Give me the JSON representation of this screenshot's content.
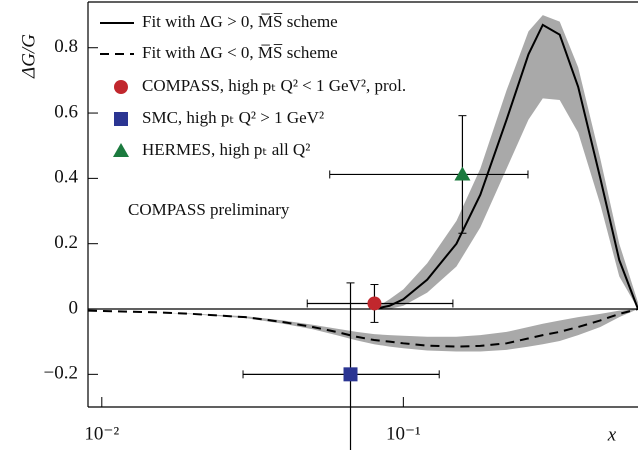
{
  "chart_data": {
    "type": "line",
    "ylabel": "ΔG/G",
    "xlabel": "x",
    "annotation": "COMPASS preliminary",
    "xscale": "log",
    "xlim": [
      0.009,
      0.6
    ],
    "ylim": [
      -0.3,
      0.94
    ],
    "xticks": [
      {
        "value": 0.01,
        "label": "10⁻²"
      },
      {
        "value": 0.1,
        "label": "10⁻¹"
      }
    ],
    "yticks": [
      {
        "value": -0.2,
        "label": "−0.2"
      },
      0,
      0.2,
      0.4,
      0.6,
      0.8
    ],
    "zero_line": true,
    "band_color": "#a9a9a9",
    "x": [
      0.009,
      0.015,
      0.02,
      0.03,
      0.04,
      0.05,
      0.06,
      0.07,
      0.08,
      0.09,
      0.1,
      0.12,
      0.15,
      0.18,
      0.22,
      0.26,
      0.29,
      0.33,
      0.38,
      0.45,
      0.52,
      0.6
    ],
    "series": [
      {
        "name": "Fit with ΔG > 0, M̅S̅ scheme",
        "color": "#000000",
        "dash": "solid",
        "values": [
          null,
          null,
          null,
          null,
          null,
          null,
          null,
          null,
          0,
          0.01,
          0.03,
          0.09,
          0.2,
          0.35,
          0.58,
          0.78,
          0.87,
          0.84,
          0.68,
          0.4,
          0.15,
          0
        ],
        "band_upper": [
          null,
          null,
          null,
          null,
          null,
          null,
          null,
          null,
          0,
          0.03,
          0.06,
          0.14,
          0.27,
          0.43,
          0.67,
          0.85,
          0.9,
          0.88,
          0.74,
          0.46,
          0.2,
          0.02
        ],
        "band_lower": [
          null,
          null,
          null,
          null,
          null,
          null,
          null,
          null,
          0,
          0,
          0.01,
          0.05,
          0.13,
          0.25,
          0.43,
          0.58,
          0.645,
          0.64,
          0.54,
          0.32,
          0.1,
          0
        ]
      },
      {
        "name": "Fit with ΔG < 0, M̅S̅ scheme",
        "color": "#000000",
        "dash": "dashed",
        "values": [
          -0.005,
          -0.01,
          -0.015,
          -0.025,
          -0.04,
          -0.055,
          -0.07,
          -0.085,
          -0.095,
          -0.1,
          -0.105,
          -0.112,
          -0.115,
          -0.113,
          -0.105,
          -0.09,
          -0.08,
          -0.07,
          -0.055,
          -0.035,
          -0.015,
          0
        ],
        "band_upper": [
          -0.005,
          -0.01,
          -0.014,
          -0.022,
          -0.035,
          -0.048,
          -0.06,
          -0.07,
          -0.077,
          -0.08,
          -0.082,
          -0.085,
          -0.085,
          -0.08,
          -0.07,
          -0.055,
          -0.045,
          -0.035,
          -0.025,
          -0.015,
          -0.005,
          0
        ],
        "band_lower": [
          -0.005,
          -0.01,
          -0.016,
          -0.028,
          -0.045,
          -0.062,
          -0.08,
          -0.096,
          -0.108,
          -0.115,
          -0.12,
          -0.127,
          -0.13,
          -0.13,
          -0.125,
          -0.115,
          -0.108,
          -0.098,
          -0.08,
          -0.055,
          -0.025,
          0
        ]
      }
    ],
    "points": [
      {
        "name": "COMPASS, high pₜ Q² < 1 GeV², prol.",
        "color": "#c1272d",
        "marker": "circle",
        "x": 0.0802,
        "y": 0.017,
        "yerr": 0.058,
        "xmin": 0.048,
        "xmax": 0.146
      },
      {
        "name": "SMC, high pₜ Q² > 1 GeV²",
        "color": "#2b3592",
        "marker": "square",
        "x": 0.0668,
        "y": -0.2,
        "yerr": 0.28,
        "xmin": 0.0294,
        "xmax": 0.1315
      },
      {
        "name": "HERMES, high pₜ all Q²",
        "color": "#1b7a3e",
        "marker": "triangle",
        "x": 0.157,
        "y": 0.412,
        "yerr": 0.18,
        "xmin": 0.057,
        "xmax": 0.259
      }
    ]
  }
}
